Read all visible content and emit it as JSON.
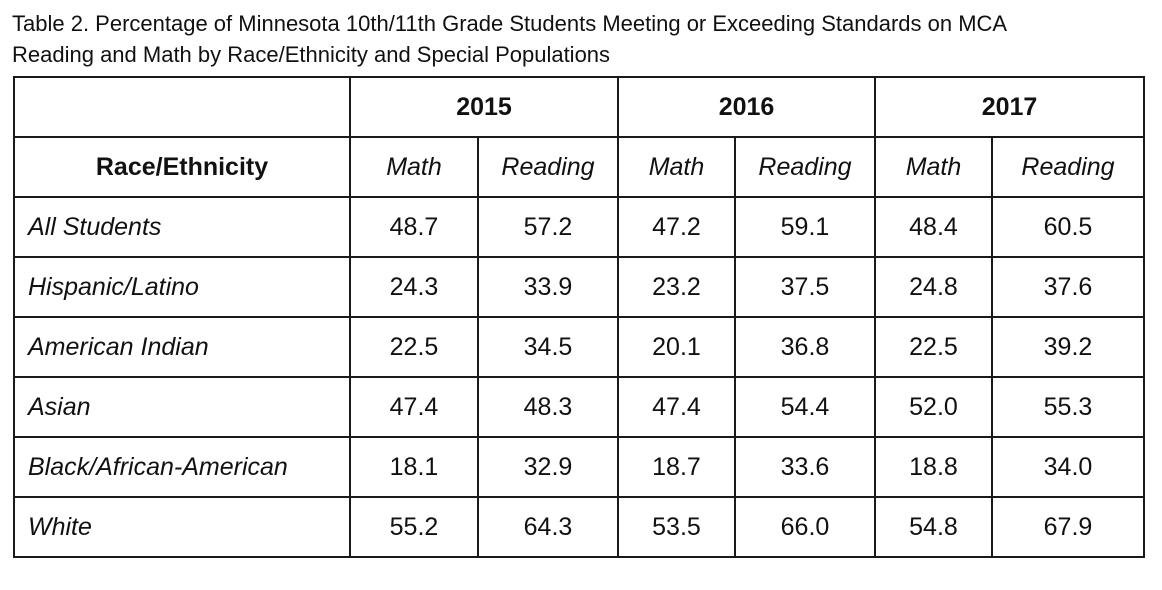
{
  "caption": {
    "line1": "Table 2. Percentage of Minnesota 10th/11th Grade Students Meeting or Exceeding Standards on MCA",
    "line2": "Reading and Math by Race/Ethnicity and Special Populations"
  },
  "table": {
    "years": [
      "2015",
      "2016",
      "2017"
    ],
    "row_header_title": "Race/Ethnicity",
    "subheaders": [
      "Math",
      "Reading",
      "Math",
      "Reading",
      "Math",
      "Reading"
    ],
    "rows": [
      {
        "label": "All Students",
        "values": [
          "48.7",
          "57.2",
          "47.2",
          "59.1",
          "48.4",
          "60.5"
        ]
      },
      {
        "label": "Hispanic/Latino",
        "values": [
          "24.3",
          "33.9",
          "23.2",
          "37.5",
          "24.8",
          "37.6"
        ]
      },
      {
        "label": "American Indian",
        "values": [
          "22.5",
          "34.5",
          "20.1",
          "36.8",
          "22.5",
          "39.2"
        ]
      },
      {
        "label": "Asian",
        "values": [
          "47.4",
          "48.3",
          "47.4",
          "54.4",
          "52.0",
          "55.3"
        ]
      },
      {
        "label": "Black/African-American",
        "values": [
          "18.1",
          "32.9",
          "18.7",
          "33.6",
          "18.8",
          "34.0"
        ]
      },
      {
        "label": "White",
        "values": [
          "55.2",
          "64.3",
          "53.5",
          "66.0",
          "54.8",
          "67.9"
        ]
      }
    ]
  }
}
